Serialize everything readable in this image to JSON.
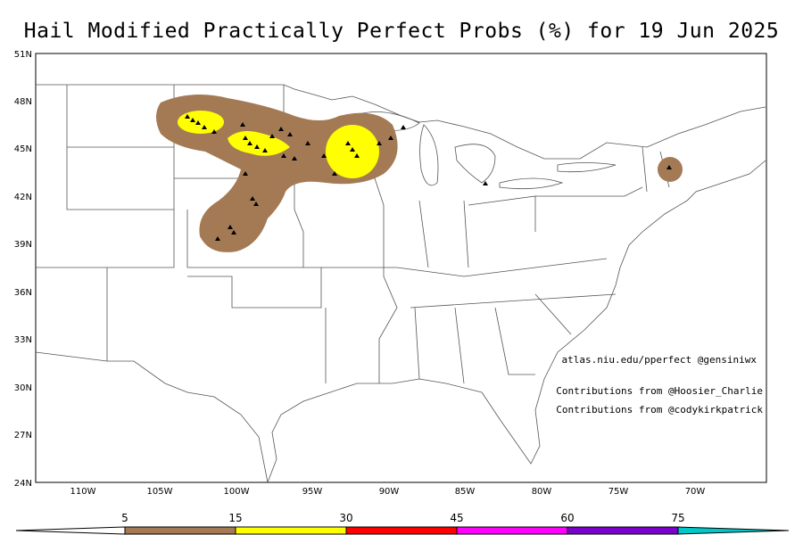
{
  "title": "Hail Modified Practically Perfect Probs (%) for 19 Jun 2025",
  "map": {
    "lat_ticks": [
      "51N",
      "48N",
      "45N",
      "42N",
      "39N",
      "36N",
      "33N",
      "30N",
      "27N",
      "24N"
    ],
    "lon_ticks": [
      "110W",
      "105W",
      "100W",
      "95W",
      "90W",
      "85W",
      "80W",
      "75W",
      "70W"
    ]
  },
  "credits": {
    "line1": "atlas.niu.edu/pperfect @gensiniwx",
    "line2": "Contributions from @Hoosier_Charlie",
    "line3": "Contributions from @codykirkpatrick"
  },
  "colorbar": {
    "labels": [
      "5",
      "15",
      "30",
      "45",
      "60",
      "75"
    ],
    "colors": [
      "#a47a55",
      "#ffff00",
      "#ff0000",
      "#ff00ff",
      "#7b00cc",
      "#00c8c8"
    ]
  }
}
